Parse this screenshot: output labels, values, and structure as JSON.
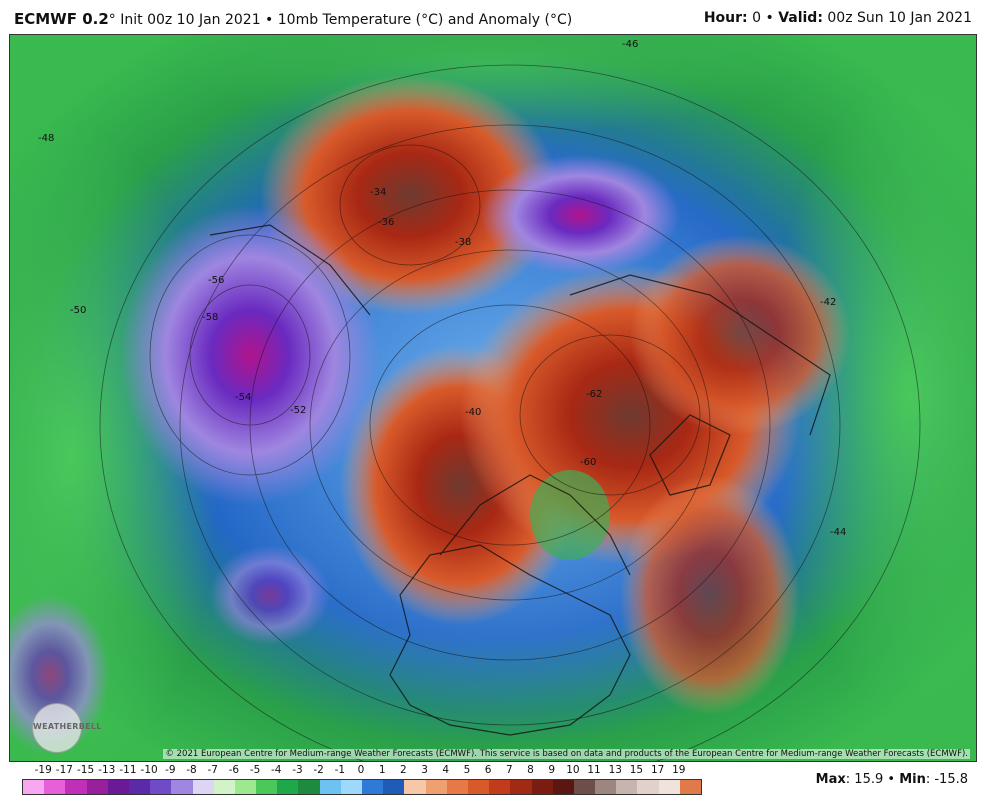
{
  "header": {
    "model": "ECMWF 0.2",
    "title_rest": "° Init 00z 10 Jan 2021 • 10mb Temperature (°C) and Anomaly (°C)",
    "hour_label": "Hour:",
    "hour_value": "0",
    "valid_label": "Valid:",
    "valid_value": "00z Sun 10 Jan 2021"
  },
  "map": {
    "copyright": "© 2021 European Centre for Medium-range Weather Forecasts (ECMWF). This service is based on data and products of the European Centre for Medium-range Weather Forecasts (ECMWF).",
    "logo_text": "WEATHERBELL",
    "contour_labels": [
      "-46",
      "-48",
      "-50",
      "-52",
      "-54",
      "-56",
      "-58",
      "-34",
      "-36",
      "-38",
      "-40",
      "-42",
      "-44",
      "-62",
      "-60"
    ]
  },
  "legend": {
    "labels": [
      "-19",
      "-17",
      "-15",
      "-13",
      "-11",
      "-10",
      "-9",
      "-8",
      "-7",
      "-6",
      "-5",
      "-4",
      "-3",
      "-2",
      "-1",
      "0",
      "1",
      "2",
      "3",
      "4",
      "5",
      "6",
      "7",
      "8",
      "9",
      "10",
      "11",
      "13",
      "15",
      "17",
      "19"
    ],
    "colors": [
      "#f7a8f0",
      "#e860d8",
      "#c02fb8",
      "#98209a",
      "#6a1a96",
      "#5a2aa8",
      "#6f4bc8",
      "#9f86e0",
      "#dcd6f4",
      "#d2f2c8",
      "#9ee890",
      "#4ac85a",
      "#1fa84a",
      "#1e8a3e",
      "#6cc2f0",
      "#9ed8fa",
      "#2f7ad8",
      "#1e5cb8",
      "#f6c8a8",
      "#f0a070",
      "#e87848",
      "#d85a2a",
      "#c23c1c",
      "#a02a14",
      "#7a1c10",
      "#5a1610",
      "#6e4e48",
      "#9e8680",
      "#c8b4ae",
      "#e2d0ca",
      "#f0e2dc",
      "#e07a4a"
    ]
  },
  "stats": {
    "max_label": "Max",
    "max_value": "15.9",
    "min_label": "Min",
    "min_value": "-15.8"
  },
  "colors": {
    "cold_core": "#4a1a6a",
    "warm_core": "#7a1a10",
    "background_field": "#1e6fd0"
  }
}
